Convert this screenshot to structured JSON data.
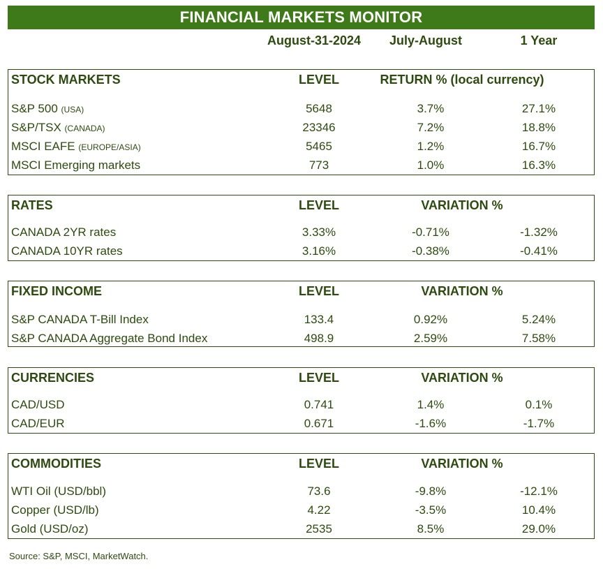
{
  "title": "FINANCIAL MARKETS MONITOR",
  "columns": {
    "date": "August-31-2024",
    "period": "July-August",
    "year": "1 Year"
  },
  "stock": {
    "title": "STOCK MARKETS",
    "level": "LEVEL",
    "variation": "RETURN % (local currency)",
    "rows": [
      {
        "name": "S&P 500",
        "note": "(USA)",
        "level": "5648",
        "v1": "3.7%",
        "v2": "27.1%"
      },
      {
        "name": "S&P/TSX",
        "note": "(CANADA)",
        "level": "23346",
        "v1": "7.2%",
        "v2": "18.8%"
      },
      {
        "name": "MSCI EAFE",
        "note": "(EUROPE/ASIA)",
        "level": "5465",
        "v1": "1.2%",
        "v2": "16.7%"
      },
      {
        "name": "MSCI Emerging markets",
        "note": "",
        "level": "773",
        "v1": "1.0%",
        "v2": "16.3%"
      }
    ]
  },
  "rates": {
    "title": "RATES",
    "level": "LEVEL",
    "variation": "VARIATION %",
    "rows": [
      {
        "name": "CANADA 2YR rates",
        "level": "3.33%",
        "v1": "-0.71%",
        "v2": "-1.32%"
      },
      {
        "name": "CANADA 10YR rates",
        "level": "3.16%",
        "v1": "-0.38%",
        "v2": "-0.41%"
      }
    ]
  },
  "fixed": {
    "title": "FIXED INCOME",
    "level": "LEVEL",
    "variation": "VARIATION %",
    "rows": [
      {
        "name": "S&P CANADA T-Bill Index",
        "level": "133.4",
        "v1": "0.92%",
        "v2": "5.24%"
      },
      {
        "name": "S&P CANADA Aggregate Bond Index",
        "level": "498.9",
        "v1": "2.59%",
        "v2": "7.58%"
      }
    ]
  },
  "currencies": {
    "title": "CURRENCIES",
    "level": "LEVEL",
    "variation": "VARIATION %",
    "rows": [
      {
        "name": "CAD/USD",
        "level": "0.741",
        "v1": "1.4%",
        "v2": "0.1%"
      },
      {
        "name": "CAD/EUR",
        "level": "0.671",
        "v1": "-1.6%",
        "v2": "-1.7%"
      }
    ]
  },
  "commodities": {
    "title": "COMMODITIES",
    "level": "LEVEL",
    "variation": "VARIATION %",
    "rows": [
      {
        "name": "WTI Oil (USD/bbl)",
        "level": "73.6",
        "v1": "-9.8%",
        "v2": "-12.1%"
      },
      {
        "name": "Copper (USD/lb)",
        "level": "4.22",
        "v1": "-3.5%",
        "v2": "10.4%"
      },
      {
        "name": "Gold (USD/oz)",
        "level": "2535",
        "v1": "8.5%",
        "v2": "29.0%"
      }
    ]
  },
  "source": "Source: S&P, MSCI, MarketWatch.",
  "colors": {
    "title_bg": "#3f7a1a",
    "text": "#2e4a10"
  }
}
